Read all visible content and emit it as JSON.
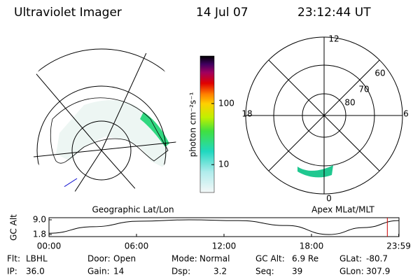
{
  "header": {
    "title": "Ultraviolet Imager",
    "date": "14 Jul 07",
    "time": "23:12:44 UT"
  },
  "left_map": {
    "label": "Geographic Lat/Lon"
  },
  "right_map": {
    "label": "Apex MLat/MLT",
    "mlt_labels": [
      "12",
      "18",
      "6",
      "0"
    ],
    "lat_labels": [
      "60",
      "70",
      "80"
    ]
  },
  "colorbar": {
    "label": "photon cm⁻²s⁻¹",
    "log": true,
    "clim": [
      3.5,
      600
    ],
    "ticks": [
      10,
      100
    ]
  },
  "chart_data": {
    "type": "line",
    "ylabel": "GC Alt",
    "x": [
      0,
      3,
      6.2,
      9.6,
      13,
      16.3,
      19.2,
      21.6,
      24
    ],
    "series": [
      {
        "name": "GC Alt",
        "color": "#000000",
        "values": [
          2.4,
          5.6,
          8.3,
          9.0,
          8.6,
          6.2,
          1.8,
          5.2,
          8.6
        ]
      }
    ],
    "xlim": [
      0,
      24
    ],
    "ylim": [
      1.8,
      9.0
    ],
    "xticks": [
      {
        "value": 0,
        "label": "00:00"
      },
      {
        "value": 6,
        "label": "06:00"
      },
      {
        "value": 12,
        "label": "12:00"
      },
      {
        "value": 18,
        "label": "18:00"
      },
      {
        "value": 23.98,
        "label": "23:59"
      }
    ],
    "yticks": [
      {
        "value": 9.0,
        "label": "9.0"
      },
      {
        "value": 1.8,
        "label": "1.8"
      }
    ],
    "current_time": 23.2,
    "current_color": "#cc0000"
  },
  "info": [
    [
      {
        "label": "Flt:",
        "value": "LBHL"
      },
      {
        "label": "Door:",
        "value": "Open"
      },
      {
        "label": "Mode:",
        "value": "Normal"
      },
      {
        "label": "GC Alt:",
        "value": "6.9 Re"
      },
      {
        "label": "GLat:",
        "value": "-80.7"
      }
    ],
    [
      {
        "label": "IP:",
        "value": "36.0"
      },
      {
        "label": "Gain:",
        "value": "14"
      },
      {
        "label": "Dsp:",
        "value": "3.2"
      },
      {
        "label": "Seq:",
        "value": "39"
      },
      {
        "label": "GLon:",
        "value": "307.9"
      }
    ]
  ]
}
